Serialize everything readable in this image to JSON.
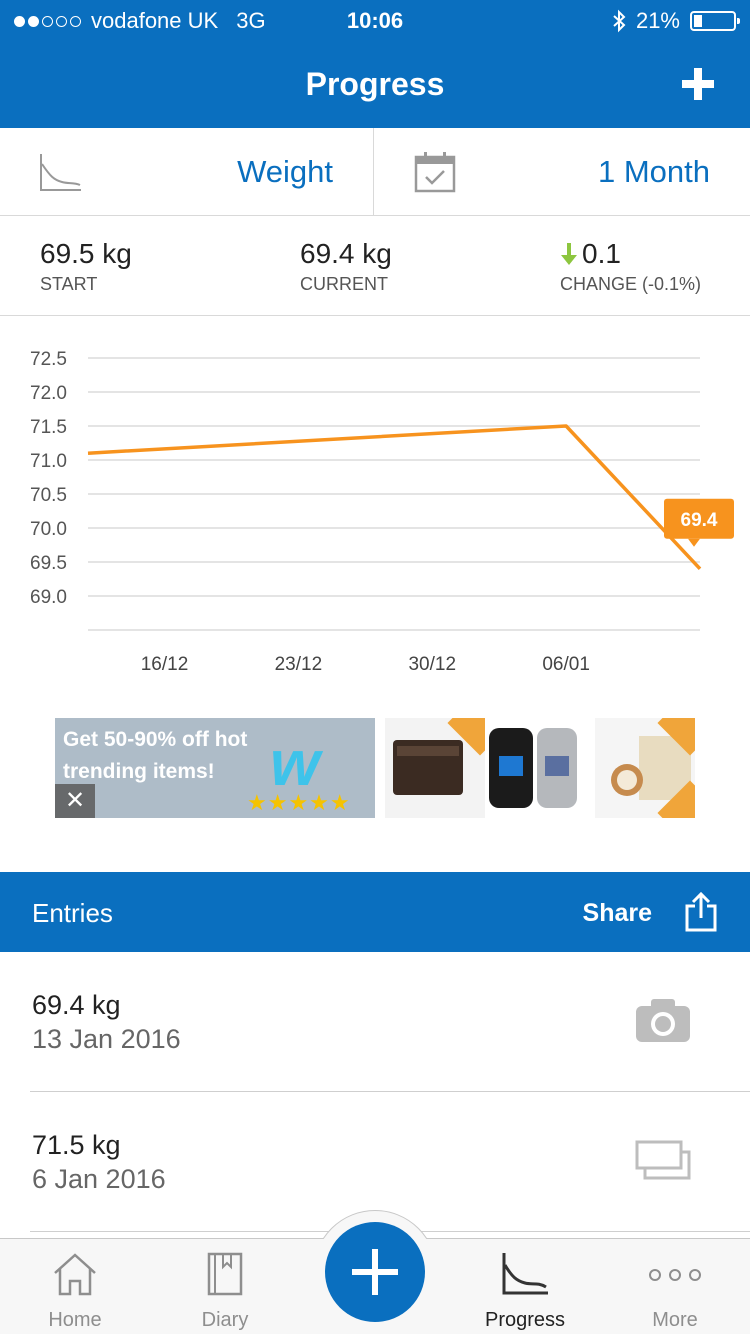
{
  "status_bar": {
    "carrier": "vodafone UK",
    "network": "3G",
    "time": "10:06",
    "battery": "21%",
    "battery_level": 0.21,
    "signal_bars_filled": 2,
    "signal_bars_total": 5
  },
  "nav": {
    "title": "Progress",
    "add_icon": "plus-icon"
  },
  "selectors": {
    "metric_label": "Weight",
    "metric_icon": "chart-line-icon",
    "range_label": "1 Month",
    "range_icon": "calendar-check-icon"
  },
  "stats": {
    "start_value": "69.5 kg",
    "start_caption": "START",
    "current_value": "69.4 kg",
    "current_caption": "CURRENT",
    "change_value": "0.1",
    "change_caption": "CHANGE (-0.1%)",
    "change_direction_icon": "arrow-down-icon"
  },
  "chart_data": {
    "type": "line",
    "title": "",
    "xlabel": "",
    "ylabel": "",
    "x_ticks": [
      "16/12",
      "23/12",
      "30/12",
      "06/01"
    ],
    "y_ticks": [
      "72.5",
      "72.0",
      "71.5",
      "71.0",
      "70.5",
      "70.0",
      "69.5",
      "69.0"
    ],
    "ylim": [
      68.5,
      72.5
    ],
    "x": [
      "2015-12-12",
      "2016-01-06",
      "2016-01-13"
    ],
    "values": [
      71.1,
      71.5,
      69.4
    ],
    "last_label": "69.4",
    "line_color": "#f7931e",
    "grid": true
  },
  "ad": {
    "text": "Get 50-90% off hot trending items!",
    "brand_icon": "wish-logo-icon",
    "close_label": "✕"
  },
  "entries": {
    "title": "Entries",
    "share_label": "Share",
    "share_icon": "share-icon",
    "items": [
      {
        "weight": "69.4 kg",
        "date": "13 Jan 2016",
        "icon": "camera-icon"
      },
      {
        "weight": "71.5 kg",
        "date": "6 Jan 2016",
        "icon": "photo-stack-icon"
      }
    ]
  },
  "tabs": [
    {
      "label": "Home",
      "icon": "home-icon",
      "active": false
    },
    {
      "label": "Diary",
      "icon": "book-icon",
      "active": false
    },
    {
      "label": "Progress",
      "icon": "chart-line-icon",
      "active": true
    },
    {
      "label": "More",
      "icon": "more-dots-icon",
      "active": false
    }
  ],
  "colors": {
    "brand": "#0a6fbf",
    "accent": "#f7931e",
    "change_arrow": "#8dc63f"
  }
}
